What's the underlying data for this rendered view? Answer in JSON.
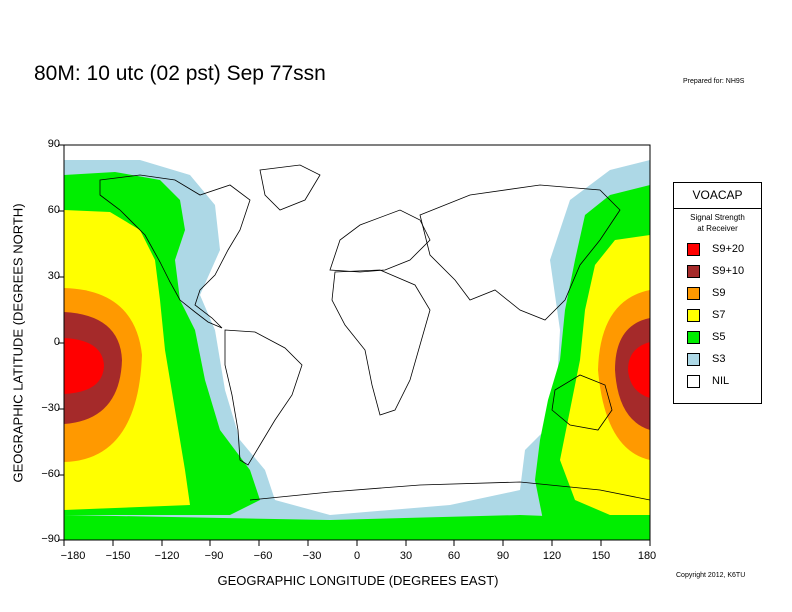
{
  "title": "80M:  10 utc (02 pst) Sep 77ssn",
  "prepared_for": "Prepared for: NH9S",
  "copyright": "Copyright 2012, K6TU",
  "axes": {
    "ylabel": "GEOGRAPHIC LATITUDE (DEGREES NORTH)",
    "xlabel": "GEOGRAPHIC LONGITUDE (DEGREES EAST)",
    "yticks": [
      "90",
      "60",
      "30",
      "0",
      "−30",
      "−60",
      "−90"
    ],
    "xticks": [
      "−180",
      "−150",
      "−120",
      "−90",
      "−60",
      "−30",
      "0",
      "30",
      "60",
      "90",
      "120",
      "150",
      "180"
    ]
  },
  "legend": {
    "title": "VOACAP",
    "subtitle": "Signal Strength\nat Receiver",
    "items": [
      {
        "label": "S9+20",
        "color": "#ff0000"
      },
      {
        "label": "S9+10",
        "color": "#a52a2a"
      },
      {
        "label": "S9",
        "color": "#ff9900"
      },
      {
        "label": "S7",
        "color": "#ffff00"
      },
      {
        "label": "S5",
        "color": "#00ee00"
      },
      {
        "label": "S3",
        "color": "#add8e6"
      },
      {
        "label": "NIL",
        "color": "#ffffff"
      }
    ]
  }
}
